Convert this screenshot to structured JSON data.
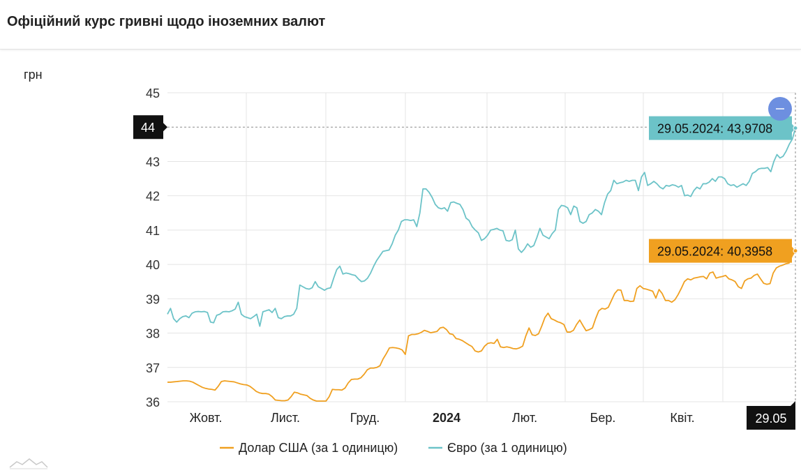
{
  "page_title": "Офіційний курс гривні щодо іноземних валют",
  "chart_data": {
    "type": "line",
    "ylabel": "грн",
    "ylim": [
      36,
      45
    ],
    "y_ticks": [
      36,
      37,
      38,
      39,
      40,
      41,
      42,
      43,
      44,
      45
    ],
    "x_tick_labels": [
      "Жовт.",
      "Лист.",
      "Груд.",
      "2024",
      "Лют.",
      "Бер.",
      "Квіт.",
      "29.05"
    ],
    "grid": true,
    "legend_position": "bottom",
    "crosshair": {
      "y_value": 44,
      "y_label": "44",
      "x_label": "29.05"
    },
    "series": [
      {
        "name": "Долар США (за 1 одиницю)",
        "color": "#f0a020",
        "tooltip": "29.05.2024: 40,3958",
        "values": [
          36.57,
          36.57,
          36.58,
          36.59,
          36.6,
          36.61,
          36.61,
          36.6,
          36.57,
          36.52,
          36.47,
          36.42,
          36.39,
          36.37,
          36.36,
          36.34,
          36.45,
          36.59,
          36.61,
          36.6,
          36.59,
          36.58,
          36.55,
          36.52,
          36.5,
          36.49,
          36.45,
          36.38,
          36.3,
          36.26,
          36.24,
          36.24,
          36.22,
          36.15,
          36.05,
          36.04,
          36.03,
          36.03,
          36.05,
          36.15,
          36.28,
          36.26,
          36.22,
          36.2,
          36.18,
          36.1,
          36.05,
          36.02,
          36.02,
          36.02,
          36.02,
          36.15,
          36.36,
          36.35,
          36.35,
          36.34,
          36.4,
          36.55,
          36.65,
          36.66,
          36.66,
          36.7,
          36.8,
          36.93,
          36.98,
          36.98,
          37.0,
          37.05,
          37.25,
          37.4,
          37.57,
          37.58,
          37.57,
          37.55,
          37.51,
          37.38,
          37.92,
          37.96,
          37.96,
          37.98,
          38.02,
          38.08,
          38.05,
          38.01,
          38.03,
          38.05,
          38.15,
          38.17,
          38.1,
          37.98,
          37.96,
          37.84,
          37.82,
          37.78,
          37.72,
          37.66,
          37.61,
          37.48,
          37.45,
          37.48,
          37.62,
          37.7,
          37.72,
          37.7,
          37.82,
          37.6,
          37.58,
          37.6,
          37.58,
          37.55,
          37.54,
          37.57,
          37.62,
          37.92,
          38.15,
          37.95,
          37.93,
          37.98,
          38.2,
          38.45,
          38.58,
          38.42,
          38.38,
          38.33,
          38.3,
          38.25,
          38.03,
          38.03,
          38.08,
          38.25,
          38.38,
          38.22,
          38.07,
          38.1,
          38.15,
          38.42,
          38.65,
          38.72,
          38.7,
          38.75,
          38.95,
          39.15,
          39.26,
          39.25,
          38.95,
          38.95,
          38.92,
          38.93,
          39.3,
          39.38,
          39.3,
          39.28,
          39.25,
          39.22,
          39.02,
          39.27,
          39.15,
          38.95,
          38.95,
          38.9,
          38.97,
          39.12,
          39.3,
          39.5,
          39.58,
          39.55,
          39.6,
          39.62,
          39.64,
          39.65,
          39.58,
          39.75,
          39.78,
          39.6,
          39.63,
          39.65,
          39.68,
          39.58,
          39.55,
          39.5,
          39.35,
          39.3,
          39.52,
          39.58,
          39.6,
          39.68,
          39.72,
          39.58,
          39.45,
          39.42,
          39.44,
          39.75,
          39.9,
          39.95,
          39.98,
          40.02,
          40.04,
          40.25,
          40.3958
        ]
      },
      {
        "name": "Євро (за 1 одиницю)",
        "color": "#6cc3c8",
        "tooltip": "29.05.2024: 43,9708",
        "values": [
          38.55,
          38.72,
          38.42,
          38.32,
          38.42,
          38.48,
          38.5,
          38.45,
          38.58,
          38.62,
          38.63,
          38.62,
          38.63,
          38.6,
          38.32,
          38.3,
          38.52,
          38.55,
          38.62,
          38.63,
          38.62,
          38.65,
          38.7,
          38.9,
          38.55,
          38.48,
          38.45,
          38.42,
          38.48,
          38.55,
          38.2,
          38.62,
          38.65,
          38.68,
          38.6,
          38.72,
          38.45,
          38.42,
          38.48,
          38.5,
          38.5,
          38.55,
          38.72,
          39.4,
          39.35,
          39.3,
          39.28,
          39.32,
          39.5,
          39.35,
          39.3,
          39.25,
          39.3,
          39.32,
          39.6,
          39.85,
          39.95,
          39.72,
          39.75,
          39.73,
          39.7,
          39.68,
          39.58,
          39.5,
          39.52,
          39.6,
          39.75,
          39.95,
          40.12,
          40.25,
          40.38,
          40.4,
          40.42,
          40.6,
          40.85,
          41.0,
          41.25,
          41.3,
          41.3,
          41.28,
          41.3,
          41.1,
          41.5,
          42.2,
          42.2,
          42.1,
          41.95,
          41.75,
          41.65,
          41.62,
          41.65,
          41.55,
          41.8,
          41.82,
          41.78,
          41.75,
          41.6,
          41.35,
          41.28,
          41.1,
          41.0,
          40.92,
          40.7,
          40.75,
          40.85,
          41.0,
          41.02,
          41.05,
          41.0,
          40.98,
          40.7,
          40.68,
          40.72,
          41.0,
          40.45,
          40.35,
          40.45,
          40.6,
          40.5,
          40.55,
          40.78,
          41.05,
          40.85,
          40.8,
          40.75,
          40.9,
          41.0,
          41.6,
          41.72,
          41.7,
          41.65,
          41.45,
          41.7,
          41.65,
          41.25,
          41.2,
          41.25,
          41.45,
          41.5,
          41.6,
          41.55,
          41.45,
          41.8,
          42.05,
          42.15,
          42.45,
          42.35,
          42.38,
          42.4,
          42.45,
          42.42,
          42.45,
          42.45,
          42.15,
          42.55,
          42.68,
          42.3,
          42.35,
          42.42,
          42.35,
          42.25,
          42.2,
          42.3,
          42.28,
          42.32,
          42.3,
          42.25,
          42.3,
          42.0,
          42.02,
          41.98,
          42.15,
          42.25,
          42.2,
          42.35,
          42.35,
          42.4,
          42.5,
          42.42,
          42.55,
          42.55,
          42.5,
          42.35,
          42.3,
          42.32,
          42.25,
          42.3,
          42.35,
          42.3,
          42.42,
          42.65,
          42.7,
          42.78,
          42.8,
          42.8,
          42.82,
          42.7,
          43.0,
          43.2,
          43.1,
          43.15,
          43.3,
          43.5,
          43.65,
          43.9708
        ]
      }
    ]
  }
}
